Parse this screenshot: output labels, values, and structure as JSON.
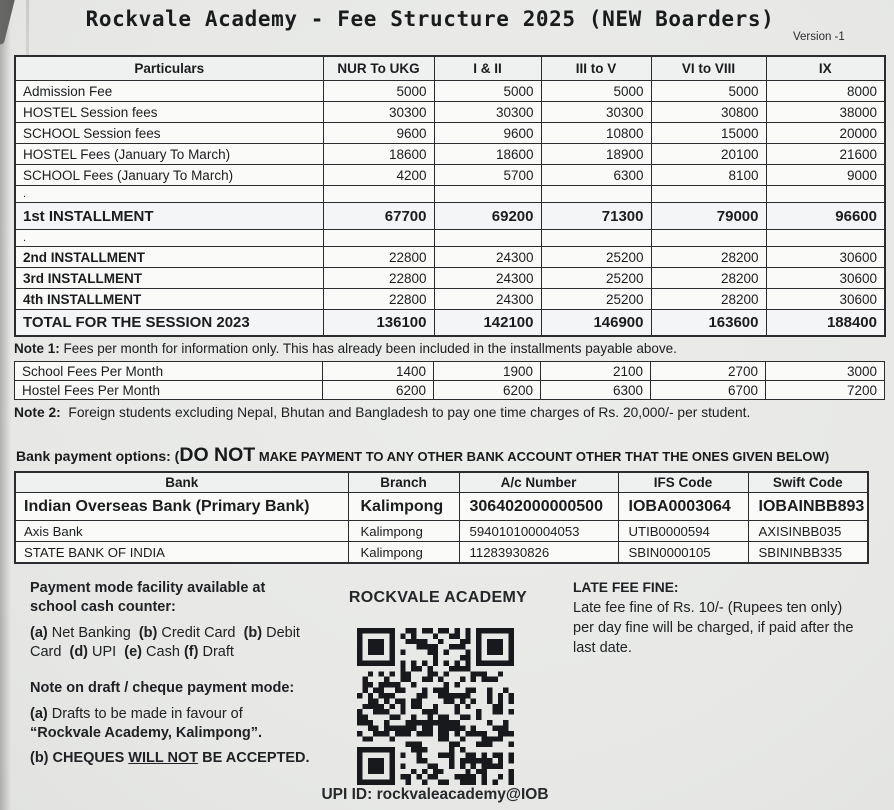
{
  "page": {
    "title": "Rockvale Academy - Fee Structure 2025 (NEW Boarders)",
    "version": "Version -1"
  },
  "fee_table": {
    "headers": [
      "Particulars",
      "NUR To UKG",
      "I & II",
      "III to V",
      "VI to VIII",
      "IX"
    ],
    "rows": [
      {
        "label": "Admission Fee",
        "values": [
          "5000",
          "5000",
          "5000",
          "5000",
          "8000"
        ],
        "style": "plain"
      },
      {
        "label": "HOSTEL Session fees",
        "values": [
          "30300",
          "30300",
          "30300",
          "30800",
          "38000"
        ],
        "style": "plain"
      },
      {
        "label": "SCHOOL Session fees",
        "values": [
          "9600",
          "9600",
          "10800",
          "15000",
          "20000"
        ],
        "style": "plain"
      },
      {
        "label": "HOSTEL Fees  (January To March)",
        "values": [
          "18600",
          "18600",
          "18900",
          "20100",
          "21600"
        ],
        "style": "plain"
      },
      {
        "label": "SCHOOL Fees (January To March)",
        "values": [
          "4200",
          "5700",
          "6300",
          "8100",
          "9000"
        ],
        "style": "plain"
      },
      {
        "label": ".",
        "values": [
          "",
          "",
          "",
          "",
          ""
        ],
        "style": "spacer"
      },
      {
        "label": "1st INSTALLMENT",
        "values": [
          "67700",
          "69200",
          "71300",
          "79000",
          "96600"
        ],
        "style": "major"
      },
      {
        "label": ".",
        "values": [
          "",
          "",
          "",
          "",
          ""
        ],
        "style": "spacer"
      },
      {
        "label": "2nd INSTALLMENT",
        "values": [
          "22800",
          "24300",
          "25200",
          "28200",
          "30600"
        ],
        "style": "installment"
      },
      {
        "label": "3rd INSTALLMENT",
        "values": [
          "22800",
          "24300",
          "25200",
          "28200",
          "30600"
        ],
        "style": "installment"
      },
      {
        "label": "4th INSTALLMENT",
        "values": [
          "22800",
          "24300",
          "25200",
          "28200",
          "30600"
        ],
        "style": "installment"
      },
      {
        "label": "TOTAL FOR THE SESSION 2023",
        "values": [
          "136100",
          "142100",
          "146900",
          "163600",
          "188400"
        ],
        "style": "total"
      }
    ]
  },
  "note1": {
    "label": "Note 1:",
    "text": " Fees per month for information only. This has already been included in the installments payable above."
  },
  "monthly_table": {
    "rows": [
      {
        "label": "School Fees Per Month",
        "values": [
          "1400",
          "1900",
          "2100",
          "2700",
          "3000"
        ]
      },
      {
        "label": "Hostel Fees Per Month",
        "values": [
          "6200",
          "6200",
          "6300",
          "6700",
          "7200"
        ]
      }
    ]
  },
  "note2": {
    "label": "Note 2:",
    "text": "  Foreign students excluding Nepal, Bhutan and Bangladesh to pay one time charges of Rs. 20,000/- per student."
  },
  "bank_section": {
    "heading": [
      {
        "t": "Bank payment options: (",
        "b": true
      },
      {
        "t": "DO NOT",
        "b": true,
        "big": true
      },
      {
        "t": " MAKE PAYMENT TO ANY OTHER BANK ACCOUNT OTHER THAT THE ONES GIVEN BELOW)",
        "b": true,
        "small": true
      }
    ],
    "headers": [
      "Bank",
      "Branch",
      "A/c Number",
      "IFS Code",
      "Swift Code"
    ],
    "rows": [
      {
        "cells": [
          "Indian Overseas Bank (Primary Bank)",
          "Kalimpong",
          "306402000000500",
          "IOBA0003064",
          "IOBAINBB893"
        ],
        "style": "primary"
      },
      {
        "cells": [
          "Axis Bank",
          "Kalimpong",
          "594010100004053",
          "UTIB0000594",
          "AXISINBB035"
        ],
        "style": "plain"
      },
      {
        "cells": [
          "STATE BANK OF INDIA",
          "Kalimpong",
          "11283930826",
          "SBIN0000105",
          "SBININBB335"
        ],
        "style": "plain"
      }
    ]
  },
  "payment_info": {
    "heading": [
      {
        "t": "Payment mode facility available at",
        "b": true
      },
      {
        "br": true
      },
      {
        "t": "school cash counter:",
        "b": true
      }
    ],
    "modes": [
      {
        "t": "(a)",
        "b": true
      },
      {
        "t": " Net Banking  "
      },
      {
        "t": "(b)",
        "b": true
      },
      {
        "t": " Credit Card  "
      },
      {
        "t": "(b)",
        "b": true
      },
      {
        "t": " Debit"
      },
      {
        "br": true
      },
      {
        "t": "Card  "
      },
      {
        "t": "(d)",
        "b": true
      },
      {
        "t": " UPI  "
      },
      {
        "t": "(e)",
        "b": true
      },
      {
        "t": " Cash "
      },
      {
        "t": "(f)",
        "b": true
      },
      {
        "t": " Draft"
      }
    ],
    "draft_heading": [
      {
        "t": "Note on draft / cheque payment mode:",
        "b": true
      }
    ],
    "draft_a": [
      {
        "t": "(a)",
        "b": true
      },
      {
        "t": " Drafts to be made in favour of"
      },
      {
        "br": true
      },
      {
        "t": "“Rockvale Academy, Kalimpong”.",
        "b": true
      }
    ],
    "draft_b": [
      {
        "t": "(b) CHEQUES ",
        "b": true
      },
      {
        "t": "WILL NOT",
        "b": true,
        "u": true
      },
      {
        "t": " BE ACCEPTED.",
        "b": true
      }
    ]
  },
  "qr_block": {
    "school_name": "ROCKVALE ACADEMY",
    "qr_icon": "upi-payment-qr-code",
    "upi_id": "UPI ID: rockvaleacademy@IOB"
  },
  "late_fee": {
    "heading": "LATE FEE FINE:",
    "lines": [
      {
        "t": "Late fee fine of Rs. 10/- (Rupees ten only)"
      },
      {
        "br": true
      },
      {
        "t": "per day fine will be charged, if paid after the"
      },
      {
        "br": true
      },
      {
        "t": "last date."
      }
    ]
  }
}
